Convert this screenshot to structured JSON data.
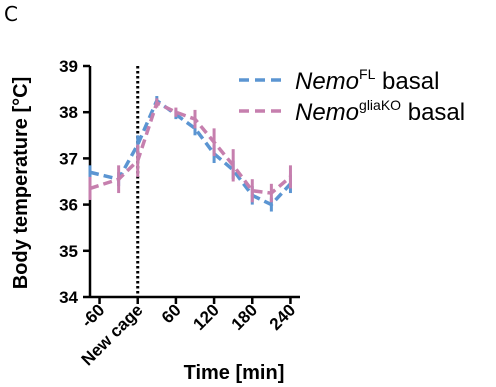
{
  "panel_label": "C",
  "colors": {
    "series_1": "#5b95d2",
    "series_2": "#c67fae",
    "axis": "#000000",
    "marker_line": "#000000"
  },
  "chart_data": {
    "type": "line",
    "xlabel": "Time [min]",
    "ylabel": "Body temperature [°C]",
    "xlim": [
      -75,
      255
    ],
    "ylim": [
      34,
      39
    ],
    "x_ticks": [
      {
        "value": -60,
        "label": "-60"
      },
      {
        "value": 0,
        "label": "New cage"
      },
      {
        "value": 60,
        "label": "60"
      },
      {
        "value": 120,
        "label": "120"
      },
      {
        "value": 180,
        "label": "180"
      },
      {
        "value": 240,
        "label": "240"
      }
    ],
    "y_ticks": [
      34,
      35,
      36,
      37,
      38,
      39
    ],
    "vertical_marker_x": 0,
    "grid": false,
    "legend_position": "top-right",
    "series": [
      {
        "name_italic": "Nemo",
        "name_sup": "FL",
        "name_suffix": " basal",
        "color": "#5b95d2",
        "x": [
          -75,
          -30,
          0,
          30,
          60,
          90,
          120,
          150,
          180,
          210,
          240
        ],
        "y": [
          36.7,
          36.55,
          37.3,
          38.25,
          37.95,
          37.65,
          37.1,
          36.75,
          36.2,
          36.0,
          36.45
        ],
        "err": [
          0.15,
          0.15,
          0.2,
          0.1,
          0.1,
          0.15,
          0.2,
          0.2,
          0.2,
          0.15,
          0.2
        ]
      },
      {
        "name_italic": "Nemo",
        "name_sup": "gliaKO",
        "name_suffix": " basal",
        "color": "#c67fae",
        "x": [
          -75,
          -30,
          0,
          30,
          60,
          90,
          120,
          150,
          180,
          210,
          240
        ],
        "y": [
          36.35,
          36.55,
          36.95,
          38.2,
          38.0,
          37.85,
          37.35,
          36.85,
          36.3,
          36.25,
          36.6
        ],
        "err": [
          0.25,
          0.3,
          0.35,
          0.1,
          0.1,
          0.2,
          0.3,
          0.35,
          0.25,
          0.2,
          0.25
        ]
      }
    ]
  }
}
